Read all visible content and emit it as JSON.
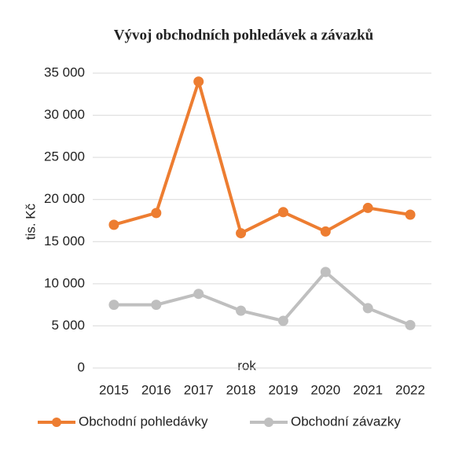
{
  "chart_data": {
    "type": "line",
    "title": "Vývoj obchodních pohledávek a závazků",
    "x_label": "rok",
    "y_label": "tis. Kč",
    "categories": [
      "2015",
      "2016",
      "2017",
      "2018",
      "2019",
      "2020",
      "2021",
      "2022"
    ],
    "series": [
      {
        "name": "Obchodní pohledávky",
        "color": "#ed7d31",
        "values": [
          17000,
          18400,
          34000,
          16000,
          18500,
          16200,
          19000,
          18200
        ]
      },
      {
        "name": "Obchodní závazky",
        "color": "#bfbfbf",
        "values": [
          7500,
          7500,
          8800,
          6800,
          5600,
          11400,
          7100,
          5100
        ]
      }
    ],
    "ylim": [
      0,
      35000
    ],
    "yticks": [
      0,
      {
        "value": 5000,
        "label": "5 000"
      },
      {
        "value": 10000,
        "label": "10 000"
      },
      {
        "value": 15000,
        "label": "15 000"
      },
      {
        "value": 20000,
        "label": "20 000"
      },
      {
        "value": 25000,
        "label": "25 000"
      },
      {
        "value": 30000,
        "label": "30 000"
      },
      {
        "value": 35000,
        "label": "35 000"
      }
    ],
    "grid": true,
    "legend": "bottom"
  }
}
